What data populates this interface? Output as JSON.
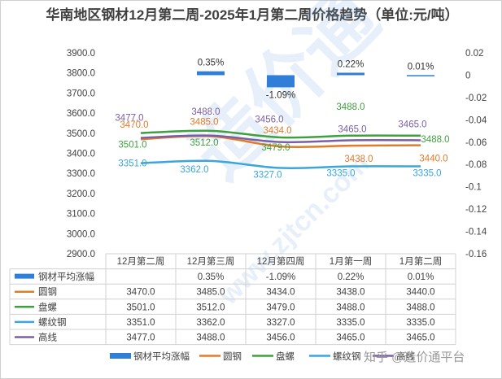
{
  "title": "华南地区钢材12月第二周-2025年1月第二周价格趋势（单位:元/吨）",
  "chart_data": {
    "type": "line+bar",
    "categories": [
      "12月第二周",
      "12月第三周",
      "12月第四周",
      "1月第一周",
      "1月第二周"
    ],
    "y_left": {
      "min": 2900,
      "max": 3900,
      "step": 100,
      "ticks": [
        "2900.0",
        "3000.0",
        "3100.0",
        "3200.0",
        "3300.0",
        "3400.0",
        "3500.0",
        "3600.0",
        "3700.0",
        "3800.0",
        "3900.0"
      ]
    },
    "y_right": {
      "min": -0.16,
      "max": 0.02,
      "step": 0.02,
      "ticks": [
        "0.02",
        "0",
        "-0.02",
        "-0.04",
        "-0.06",
        "-0.08",
        "-0.1",
        "-0.12",
        "-0.14",
        "-0.16"
      ]
    },
    "bar_series": {
      "name": "钢材平均涨幅",
      "color": "#2f7ed8",
      "values": [
        null,
        0.0035,
        -0.0109,
        0.0022,
        0.0001
      ],
      "labels": [
        "",
        "0.35%",
        "-1.09%",
        "0.22%",
        "0.01%"
      ]
    },
    "series": [
      {
        "name": "圆钢",
        "color": "#e07b2a",
        "values": [
          3470,
          3485,
          3434,
          3438,
          3440
        ],
        "labels": [
          "3470.0",
          "3485.0",
          "3434.0",
          "3438.0",
          "3440.0"
        ]
      },
      {
        "name": "盘螺",
        "color": "#3ea03e",
        "values": [
          3501,
          3512,
          3479,
          3488,
          3488
        ],
        "labels": [
          "3501.0",
          "3512.0",
          "3479.0",
          "3488.0",
          "3488.0"
        ]
      },
      {
        "name": "螺纹钢",
        "color": "#3aa6dd",
        "values": [
          3351,
          3362,
          3327,
          3335,
          3335
        ],
        "labels": [
          "3351.0",
          "3362.0",
          "3327.0",
          "3335.0",
          "3335.0"
        ]
      },
      {
        "name": "高线",
        "color": "#7a5fa8",
        "values": [
          3477,
          3488,
          3456,
          3465,
          3465
        ],
        "labels": [
          "3477.0",
          "3488.0",
          "3456.0",
          "3465.0",
          "3465.0"
        ]
      }
    ],
    "table_rows": [
      {
        "name": "钢材平均涨幅",
        "cells": [
          "",
          "0.35%",
          "-1.09%",
          "0.22%",
          "0.01%"
        ]
      },
      {
        "name": "圆钢",
        "cells": [
          "3470.0",
          "3485.0",
          "3434.0",
          "3438.0",
          "3440.0"
        ]
      },
      {
        "name": "盘螺",
        "cells": [
          "3501.0",
          "3512.0",
          "3479.0",
          "3488.0",
          "3488.0"
        ]
      },
      {
        "name": "螺纹钢",
        "cells": [
          "3351.0",
          "3362.0",
          "3327.0",
          "3335.0",
          "3335.0"
        ]
      },
      {
        "name": "高线",
        "cells": [
          "3477.0",
          "3488.0",
          "3456.0",
          "3465.0",
          "3465.0"
        ]
      }
    ],
    "legend": [
      "钢材平均涨幅",
      "圆钢",
      "盘螺",
      "螺纹钢",
      "高线"
    ]
  },
  "watermarks": {
    "brand": "造价通",
    "url": "www.zjtcn.com"
  },
  "footer": "知乎 @造价通平台"
}
